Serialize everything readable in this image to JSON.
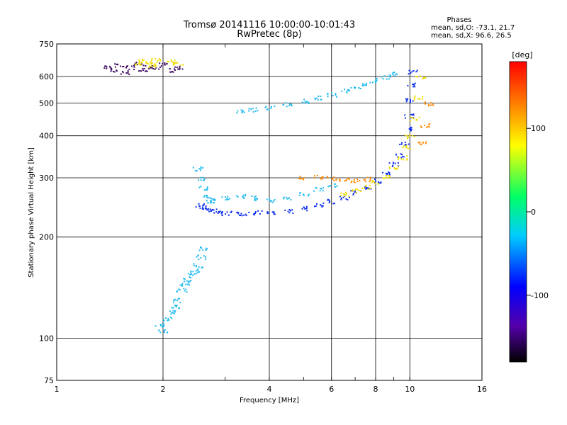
{
  "header": {
    "title": "Tromsø 20141116 10:00:00-10:01:43",
    "subtitle": "RwPretec (8p)"
  },
  "stats": {
    "heading": "Phases",
    "line_o": "mean, sd,O: -73.1, 21.7",
    "line_x": "mean, sd,X:  96.6, 26.5"
  },
  "colorbar": {
    "label": "[deg]",
    "ticks": [
      "100",
      "0",
      "-100"
    ],
    "tick_values": [
      100,
      0,
      -100
    ],
    "range": [
      -180,
      180
    ]
  },
  "colors": {
    "red": "#ff0000",
    "orange": "#ff8800",
    "yellow": "#eedd00",
    "green": "#00cc33",
    "cyan": "#22bbee",
    "blue": "#1133ee",
    "purple": "#441166"
  },
  "chart_data": {
    "type": "scatter",
    "xlabel": "Frequency [MHz]",
    "ylabel": "Stationary phase Virtual Height [km]",
    "xscale": "log",
    "yscale": "log",
    "xlim": [
      1,
      16
    ],
    "ylim": [
      75,
      750
    ],
    "xticks": [
      "1",
      "2",
      "4",
      "6",
      "8",
      "10",
      "16"
    ],
    "xtick_values": [
      1,
      2,
      4,
      6,
      8,
      10,
      16
    ],
    "yticks": [
      "750",
      "600",
      "500",
      "400",
      "300",
      "200",
      "100",
      "75"
    ],
    "ytick_values": [
      750,
      600,
      500,
      400,
      300,
      200,
      100,
      75
    ],
    "grid": true,
    "color_scale": "phase [deg]",
    "series": [
      {
        "color": "blue",
        "x": [
          2.55,
          2.6,
          2.65,
          2.75,
          2.85,
          3.0,
          3.2,
          3.4,
          3.7,
          4.0,
          4.5,
          5.0,
          5.5,
          6.0,
          6.5,
          7.0,
          7.5,
          8.0,
          8.5,
          9.0,
          9.3,
          9.6,
          9.8,
          9.9,
          10.0,
          10.1,
          10.2
        ],
        "y": [
          250,
          245,
          242,
          240,
          238,
          236,
          236,
          236,
          237,
          238,
          240,
          244,
          250,
          256,
          263,
          272,
          282,
          295,
          310,
          330,
          350,
          380,
          420,
          460,
          510,
          570,
          620
        ]
      },
      {
        "color": "cyan",
        "x": [
          2.5,
          2.55,
          2.6,
          2.65,
          2.7,
          2.8,
          3.0,
          3.3,
          3.6,
          4.0,
          4.5,
          5.0,
          5.5,
          6.0
        ],
        "y": [
          320,
          300,
          280,
          265,
          255,
          258,
          262,
          265,
          262,
          258,
          262,
          270,
          278,
          285
        ]
      },
      {
        "color": "yellow",
        "x": [
          6.5,
          7.0,
          7.5,
          8.0,
          8.5,
          9.0,
          9.5,
          9.8,
          10.0,
          10.3,
          10.5,
          10.7
        ],
        "y": [
          270,
          275,
          282,
          292,
          305,
          322,
          345,
          370,
          400,
          450,
          520,
          600
        ]
      },
      {
        "color": "orange",
        "x": [
          5.0,
          5.5,
          6.0,
          6.5,
          7.0,
          7.5,
          10.8,
          11.0,
          11.3
        ],
        "y": [
          300,
          302,
          300,
          296,
          295,
          298,
          380,
          430,
          500
        ]
      },
      {
        "color": "cyan",
        "x": [
          3.3,
          3.6,
          4.0,
          4.5,
          5.0,
          5.5,
          6.0,
          6.5,
          7.0,
          7.5,
          8.0,
          8.5,
          9.0
        ],
        "y": [
          475,
          480,
          487,
          497,
          508,
          520,
          532,
          545,
          558,
          572,
          586,
          600,
          615
        ]
      },
      {
        "color": "cyan",
        "x": [
          1.95,
          2.0,
          2.05,
          2.1,
          2.15,
          2.2,
          2.25,
          2.3,
          2.35,
          2.4,
          2.45,
          2.5,
          2.55,
          2.6
        ],
        "y": [
          110,
          105,
          115,
          120,
          125,
          130,
          140,
          145,
          150,
          155,
          160,
          165,
          175,
          185
        ]
      },
      {
        "color": "purple",
        "x": [
          1.4,
          1.45,
          1.5,
          1.55,
          1.6,
          1.7,
          1.75,
          1.8,
          1.9,
          2.0,
          2.1,
          2.2
        ],
        "y": [
          640,
          630,
          650,
          620,
          640,
          655,
          630,
          645,
          640,
          655,
          630,
          640
        ]
      },
      {
        "color": "yellow",
        "x": [
          1.7,
          1.75,
          1.8,
          1.85,
          1.9,
          2.1,
          2.2
        ],
        "y": [
          660,
          670,
          665,
          650,
          672,
          668,
          660
        ]
      }
    ]
  }
}
